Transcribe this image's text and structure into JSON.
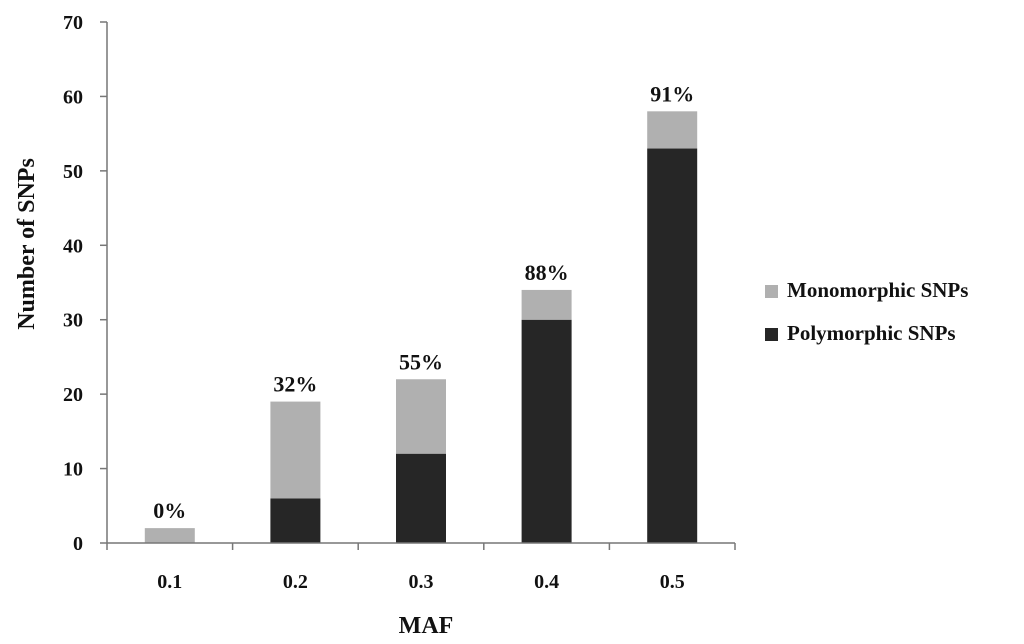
{
  "chart_data": {
    "type": "bar",
    "stacked": true,
    "categories": [
      "0.1",
      "0.2",
      "0.3",
      "0.4",
      "0.5"
    ],
    "series": [
      {
        "name": "Polymorphic SNPs",
        "values": [
          0,
          6,
          12,
          30,
          53
        ],
        "color": "#262626"
      },
      {
        "name": "Monomorphic SNPs",
        "values": [
          2,
          13,
          10,
          4,
          5
        ],
        "color": "#b0b0b0"
      }
    ],
    "data_labels": [
      "0%",
      "32%",
      "55%",
      "88%",
      "91%"
    ],
    "xlabel": "MAF",
    "ylabel": "Number of SNPs",
    "ylim": [
      0,
      70
    ],
    "yticks": [
      "0",
      "10",
      "20",
      "30",
      "40",
      "50",
      "60",
      "70"
    ],
    "ytick_values": [
      0,
      10,
      20,
      30,
      40,
      50,
      60,
      70
    ],
    "grid": false,
    "legend_position": "right",
    "legend_order": [
      "Monomorphic SNPs",
      "Polymorphic SNPs"
    ]
  }
}
